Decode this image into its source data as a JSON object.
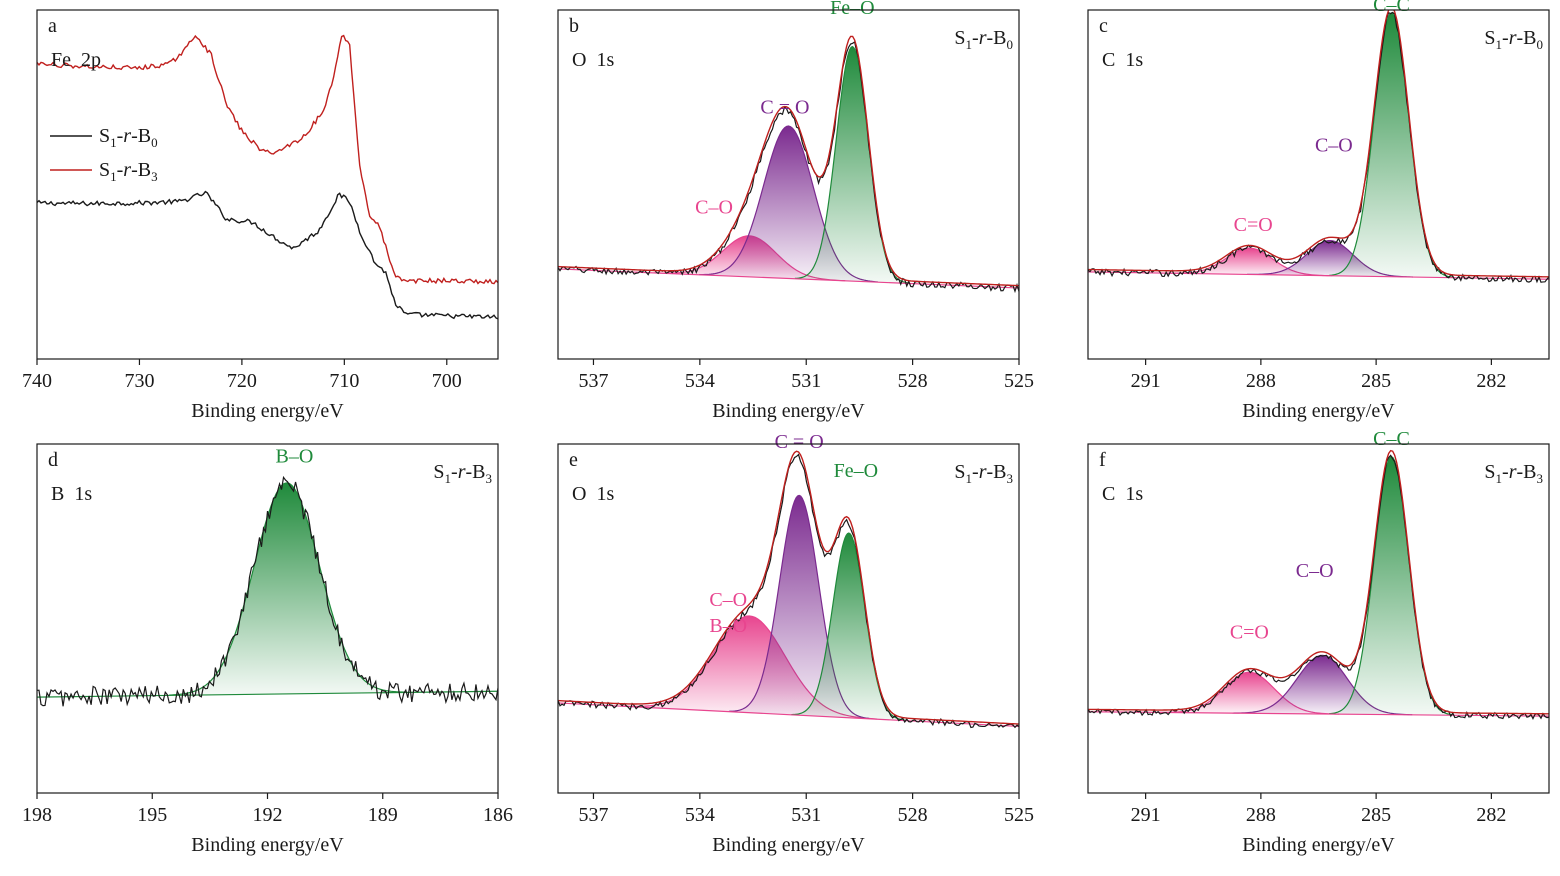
{
  "chart_data": [
    {
      "id": "a",
      "type": "line",
      "panel_letter": "a",
      "element": "Fe  2p",
      "xlabel": "Binding energy/eV",
      "xlim": [
        740,
        695
      ],
      "x_ticks": [
        740,
        730,
        720,
        710,
        700
      ],
      "ylim": [
        0,
        1
      ],
      "legend_position": "top-left",
      "legend": [
        {
          "base": "S",
          "sub1": "1",
          "mid": "-r-",
          "base2": "B",
          "sub2": "0",
          "color": "#1a1a1a"
        },
        {
          "base": "S",
          "sub1": "1",
          "mid": "-r-",
          "base2": "B",
          "sub2": "3",
          "color": "#c0201e"
        }
      ],
      "series": [
        {
          "name": "S1-r-B0",
          "color": "#1a1a1a",
          "noise": 0.008,
          "points": [
            [
              740,
              0.425
            ],
            [
              735,
              0.423
            ],
            [
              730,
              0.425
            ],
            [
              726,
              0.43
            ],
            [
              723.5,
              0.46
            ],
            [
              721.5,
              0.37
            ],
            [
              719,
              0.36
            ],
            [
              716.5,
              0.3
            ],
            [
              715,
              0.27
            ],
            [
              712.5,
              0.33
            ],
            [
              710.5,
              0.455
            ],
            [
              709.5,
              0.43
            ],
            [
              708.5,
              0.33
            ],
            [
              707,
              0.22
            ],
            [
              706,
              0.19
            ],
            [
              705,
              0.08
            ],
            [
              704,
              0.045
            ],
            [
              700,
              0.04
            ],
            [
              695,
              0.035
            ]
          ]
        },
        {
          "name": "S1-r-B3",
          "color": "#c0201e",
          "noise": 0.008,
          "points": [
            [
              740,
              0.9
            ],
            [
              735,
              0.89
            ],
            [
              730,
              0.885
            ],
            [
              727,
              0.9
            ],
            [
              725.5,
              0.95
            ],
            [
              724.5,
              1.0
            ],
            [
              723,
              0.93
            ],
            [
              721.5,
              0.76
            ],
            [
              720,
              0.67
            ],
            [
              718,
              0.6
            ],
            [
              716.5,
              0.6
            ],
            [
              714,
              0.65
            ],
            [
              712,
              0.74
            ],
            [
              711,
              0.86
            ],
            [
              710.3,
              1.0
            ],
            [
              709.5,
              0.97
            ],
            [
              708.5,
              0.55
            ],
            [
              707.5,
              0.38
            ],
            [
              706.5,
              0.34
            ],
            [
              705.5,
              0.22
            ],
            [
              705,
              0.17
            ],
            [
              704,
              0.16
            ],
            [
              700,
              0.16
            ],
            [
              695,
              0.155
            ]
          ]
        }
      ]
    },
    {
      "id": "b",
      "type": "area",
      "panel_letter": "b",
      "element": "O  1s",
      "sample": {
        "base": "S",
        "sub1": "1",
        "mid": "-r-",
        "base2": "B",
        "sub2": "0"
      },
      "xlabel": "Binding energy/eV",
      "xlim": [
        538,
        525
      ],
      "x_ticks": [
        537,
        534,
        531,
        528,
        525
      ],
      "ylim": [
        0,
        1
      ],
      "baseline": [
        [
          538,
          0.2
        ],
        [
          525,
          0.135
        ]
      ],
      "noise": 0.012,
      "components": [
        {
          "label": "C–O",
          "center": 532.6,
          "height": 0.14,
          "sigma": 0.75,
          "color": "#e8458f",
          "label_at": [
            533.6,
            0.39
          ]
        },
        {
          "label": "C = O",
          "center": 531.5,
          "height": 0.52,
          "sigma": 0.7,
          "color": "#7b2a8f",
          "label_at": [
            531.6,
            0.73
          ]
        },
        {
          "label": "Fe–O",
          "center": 529.7,
          "height": 0.8,
          "sigma": 0.45,
          "color": "#1f8a3b",
          "label_at": [
            529.7,
            1.07
          ]
        }
      ]
    },
    {
      "id": "c",
      "type": "area",
      "panel_letter": "c",
      "element": "C  1s",
      "sample": {
        "base": "S",
        "sub1": "1",
        "mid": "-r-",
        "base2": "B",
        "sub2": "0"
      },
      "xlabel": "Binding energy/eV",
      "xlim": [
        292.5,
        280.5
      ],
      "x_ticks": [
        291,
        288,
        285,
        282
      ],
      "ylim": [
        0,
        1
      ],
      "baseline": [
        [
          292.5,
          0.19
        ],
        [
          280.5,
          0.165
        ]
      ],
      "noise": 0.012,
      "components": [
        {
          "label": "C=O",
          "center": 288.3,
          "height": 0.09,
          "sigma": 0.6,
          "color": "#e8458f",
          "label_at": [
            288.2,
            0.33
          ]
        },
        {
          "label": "C–O",
          "center": 286.2,
          "height": 0.12,
          "sigma": 0.6,
          "color": "#7b2a8f",
          "label_at": [
            286.1,
            0.6
          ]
        },
        {
          "label": "C–C",
          "center": 284.6,
          "height": 0.9,
          "sigma": 0.45,
          "color": "#1f8a3b",
          "label_at": [
            284.6,
            1.08
          ]
        }
      ]
    },
    {
      "id": "d",
      "type": "area",
      "panel_letter": "d",
      "element": "B  1s",
      "sample": {
        "base": "S",
        "sub1": "1",
        "mid": "-r-",
        "base2": "B",
        "sub2": "3"
      },
      "xlabel": "Binding energy/eV",
      "xlim": [
        198,
        186
      ],
      "x_ticks": [
        198,
        195,
        192,
        189,
        186
      ],
      "ylim": [
        0,
        1
      ],
      "baseline": [
        [
          198,
          0.22
        ],
        [
          186,
          0.24
        ]
      ],
      "noise": 0.035,
      "components": [
        {
          "label": "B–O",
          "center": 191.5,
          "height": 0.72,
          "sigma": 0.85,
          "color": "#1f8a3b",
          "label_at": [
            191.3,
            1.02
          ]
        }
      ]
    },
    {
      "id": "e",
      "type": "area",
      "panel_letter": "e",
      "element": "O  1s",
      "sample": {
        "base": "S",
        "sub1": "1",
        "mid": "-r-",
        "base2": "B",
        "sub2": "3"
      },
      "xlabel": "Binding energy/eV",
      "xlim": [
        538,
        525
      ],
      "x_ticks": [
        537,
        534,
        531,
        528,
        525
      ],
      "ylim": [
        0,
        1
      ],
      "baseline": [
        [
          538,
          0.2
        ],
        [
          525,
          0.12
        ]
      ],
      "noise": 0.012,
      "components": [
        {
          "label": "C–O",
          "label2": "B–O",
          "center": 532.6,
          "height": 0.33,
          "sigma": 1.0,
          "color": "#e8458f",
          "label_at": [
            533.2,
            0.53
          ]
        },
        {
          "label": "C = O",
          "center": 531.2,
          "height": 0.75,
          "sigma": 0.55,
          "color": "#7b2a8f",
          "label_at": [
            531.2,
            1.07
          ]
        },
        {
          "label": "Fe–O",
          "center": 529.8,
          "height": 0.63,
          "sigma": 0.45,
          "color": "#1f8a3b",
          "label_at": [
            529.6,
            0.97
          ]
        }
      ]
    },
    {
      "id": "f",
      "type": "area",
      "panel_letter": "f",
      "element": "C  1s",
      "sample": {
        "base": "S",
        "sub1": "1",
        "mid": "-r-",
        "base2": "B",
        "sub2": "3"
      },
      "xlabel": "Binding energy/eV",
      "xlim": [
        292.5,
        280.5
      ],
      "x_ticks": [
        291,
        288,
        285,
        282
      ],
      "ylim": [
        0,
        1
      ],
      "baseline": [
        [
          292.5,
          0.17
        ],
        [
          280.5,
          0.155
        ]
      ],
      "noise": 0.01,
      "components": [
        {
          "label": "C=O",
          "center": 288.3,
          "height": 0.14,
          "sigma": 0.65,
          "color": "#e8458f",
          "label_at": [
            288.3,
            0.42
          ]
        },
        {
          "label": "C–O",
          "center": 286.4,
          "height": 0.2,
          "sigma": 0.65,
          "color": "#7b2a8f",
          "label_at": [
            286.6,
            0.63
          ]
        },
        {
          "label": "C–C",
          "center": 284.6,
          "height": 0.88,
          "sigma": 0.45,
          "color": "#1f8a3b",
          "label_at": [
            284.6,
            1.08
          ]
        }
      ]
    }
  ]
}
